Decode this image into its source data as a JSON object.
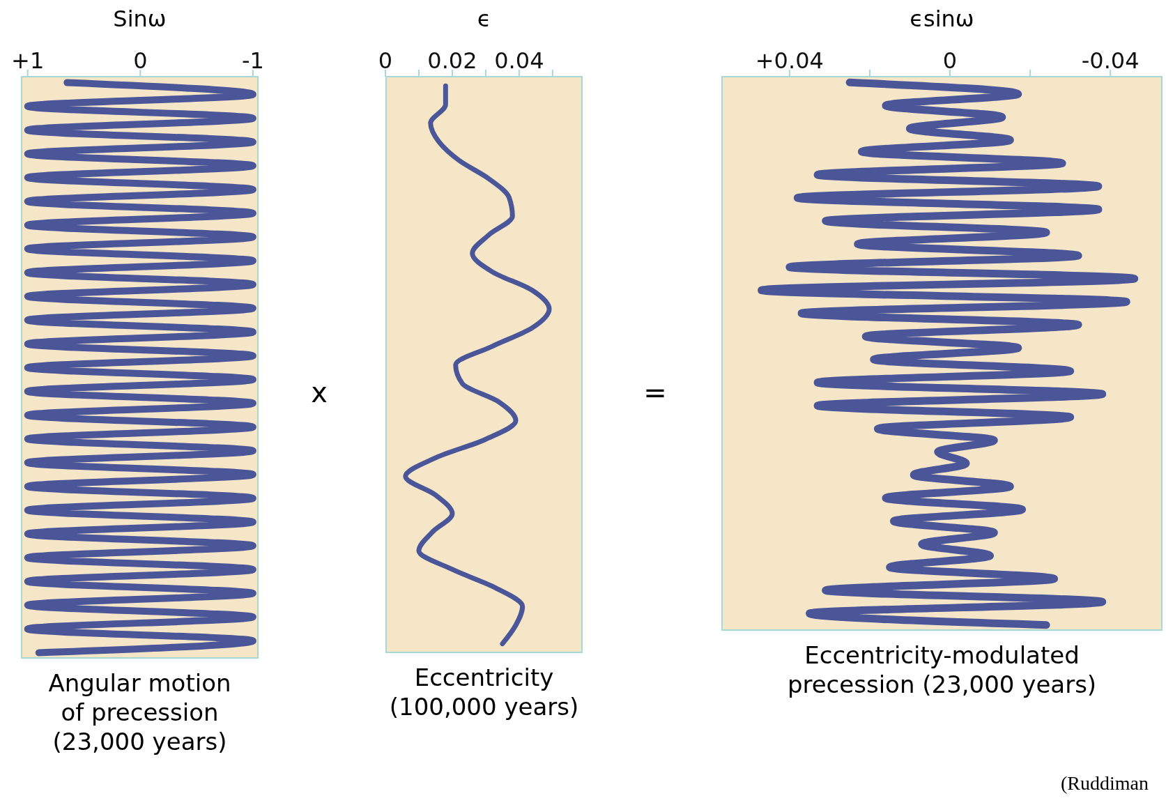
{
  "chart_data": [
    {
      "type": "line",
      "title": "Sinω",
      "xlabel": "Angular motion of precession (23,000 years)",
      "orientation": "horizontal",
      "color": "#4b5699",
      "categories": [
        null,
        null,
        null,
        null,
        null,
        null,
        null,
        null,
        null,
        null,
        null,
        null,
        null,
        null,
        null,
        null,
        null,
        null,
        null,
        null,
        null,
        null,
        null,
        null,
        null,
        null,
        null,
        null,
        null,
        null,
        null,
        null,
        null,
        null,
        null,
        null,
        null,
        null,
        null,
        null,
        null,
        null,
        null,
        null,
        null,
        null,
        null,
        null,
        null
      ],
      "values": [
        0.65,
        -1,
        1,
        -1,
        1,
        -1,
        1,
        -1,
        1,
        -1,
        1,
        -1,
        1,
        -1,
        1,
        -1,
        1,
        -1,
        1,
        -1,
        1,
        -1,
        1,
        -1,
        1,
        -1,
        1,
        -1,
        1,
        -1,
        1,
        -1,
        1,
        -1,
        1,
        -1,
        1,
        -1,
        1,
        -1,
        1,
        -1,
        1,
        -1,
        1,
        -1,
        1,
        -1,
        0.9
      ],
      "xlim": [
        1.06,
        -1.05
      ],
      "xticks": [
        {
          "value": 1,
          "label": "+1"
        },
        0,
        -1
      ]
    },
    {
      "type": "line",
      "title": "ϵ",
      "xlabel": "Eccentricity (100,000 years)",
      "orientation": "horizontal",
      "color": "#4b5699",
      "annotations": [
        "x"
      ],
      "categories": [
        null,
        null,
        null,
        null,
        null,
        null,
        null,
        null,
        null,
        null,
        null,
        null,
        null,
        null,
        null,
        null,
        null,
        null,
        null,
        null,
        null,
        null,
        null,
        null,
        null,
        null,
        null,
        null,
        null,
        null,
        null
      ],
      "values": [
        0.018,
        0.018,
        0.0135,
        0.016,
        0.022,
        0.031,
        0.037,
        0.038,
        0.031,
        0.026,
        0.032,
        0.044,
        0.049,
        0.044,
        0.032,
        0.021,
        0.023,
        0.034,
        0.039,
        0.03,
        0.015,
        0.006,
        0.015,
        0.02,
        0.014,
        0.01,
        0.02,
        0.033,
        0.041,
        0.039,
        0.035
      ],
      "xlim": [
        0,
        0.059
      ],
      "xticks": [
        0,
        {
          "value": 0.01,
          "label": null
        },
        0.02,
        {
          "value": 0.03,
          "label": null
        },
        0.04,
        {
          "value": 0.05,
          "label": null
        }
      ]
    },
    {
      "type": "line",
      "title": "ϵsinω",
      "xlabel": "Eccentricity-modulated precession (23,000 years)",
      "orientation": "horizontal",
      "color": "#4b5699",
      "annotations": [
        "=",
        "(Ruddiman"
      ],
      "categories": [
        null,
        null,
        null,
        null,
        null,
        null,
        null,
        null,
        null,
        null,
        null,
        null,
        null,
        null,
        null,
        null,
        null,
        null,
        null,
        null,
        null,
        null,
        null,
        null,
        null,
        null,
        null,
        null,
        null,
        null,
        null,
        null,
        null,
        null,
        null,
        null,
        null,
        null,
        null,
        null,
        null,
        null,
        null,
        null,
        null,
        null,
        null,
        null
      ],
      "values": [
        0.025,
        -0.017,
        0.016,
        -0.013,
        0.01,
        -0.015,
        0.022,
        -0.028,
        0.033,
        -0.037,
        0.038,
        -0.037,
        0.031,
        -0.024,
        0.023,
        -0.032,
        0.04,
        -0.046,
        0.047,
        -0.044,
        0.037,
        -0.032,
        0.021,
        -0.017,
        0.019,
        -0.03,
        0.033,
        -0.038,
        0.033,
        -0.03,
        0.018,
        -0.011,
        0.003,
        -0.004,
        0.009,
        -0.015,
        0.016,
        -0.018,
        0.014,
        -0.011,
        0.007,
        -0.01,
        0.015,
        -0.026,
        0.031,
        -0.038,
        0.035,
        -0.024
      ],
      "xlim": [
        0.057,
        -0.053
      ],
      "xticks": [
        {
          "value": 0.04,
          "label": "+0.04"
        },
        {
          "value": 0.02,
          "label": null
        },
        0,
        {
          "value": -0.02,
          "label": null
        },
        -0.04
      ]
    }
  ]
}
